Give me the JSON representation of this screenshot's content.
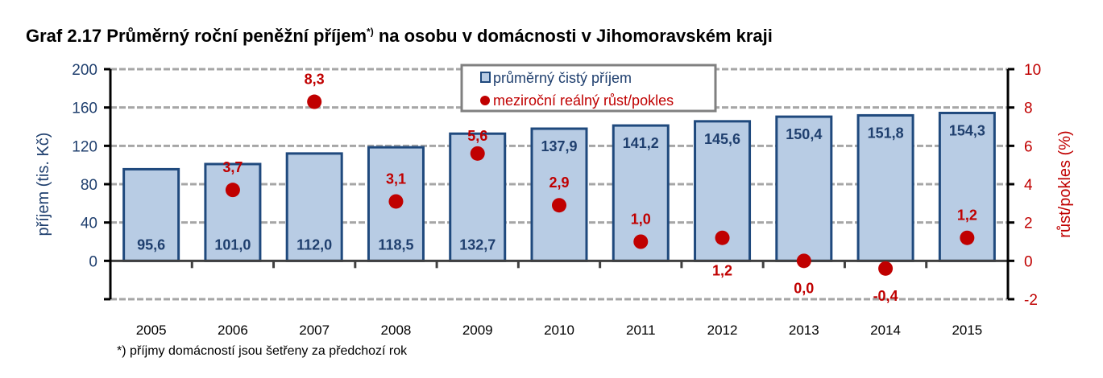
{
  "chart_data": {
    "type": "bar+scatter",
    "title": "Graf 2.17 Průměrný roční peněžní příjem",
    "title_sup": "*)",
    "title_rest": " na osobu v domácnosti v Jihomoravském kraji",
    "footnote": "*) příjmy domácností jsou šetřeny za předchozí rok",
    "categories": [
      "2005",
      "2006",
      "2007",
      "2008",
      "2009",
      "2010",
      "2011",
      "2012",
      "2013",
      "2014",
      "2015"
    ],
    "series": [
      {
        "name": "průměrný čistý příjem",
        "axis": "left",
        "type": "bar",
        "color": "#b8cce4",
        "edge": "#1f497d",
        "values": [
          95.6,
          101.0,
          112.0,
          118.5,
          132.7,
          137.9,
          141.2,
          145.6,
          150.4,
          151.8,
          154.3
        ],
        "labels": [
          "95,6",
          "101,0",
          "112,0",
          "118,5",
          "132,7",
          "137,9",
          "141,2",
          "145,6",
          "150,4",
          "151,8",
          "154,3"
        ]
      },
      {
        "name": "meziroční reálný růst/pokles",
        "axis": "right",
        "type": "scatter",
        "color": "#c00000",
        "values": [
          null,
          3.7,
          8.3,
          3.1,
          5.6,
          2.9,
          1.0,
          1.2,
          0.0,
          -0.4,
          1.2
        ],
        "labels": [
          "",
          "3,7",
          "8,3",
          "3,1",
          "5,6",
          "2,9",
          "1,0",
          "1,2",
          "0,0",
          "-0,4",
          "1,2"
        ]
      }
    ],
    "ylabel": "příjem (tis. Kč)",
    "y2label": "růst/pokles (%)",
    "ylim": [
      -40,
      200
    ],
    "yticks": [
      "0",
      "40",
      "80",
      "120",
      "160",
      "200"
    ],
    "y2lim": [
      -2,
      10
    ],
    "y2ticks": [
      "-2",
      "0",
      "2",
      "4",
      "6",
      "8",
      "10"
    ],
    "grid": true,
    "legend": "top-center"
  }
}
